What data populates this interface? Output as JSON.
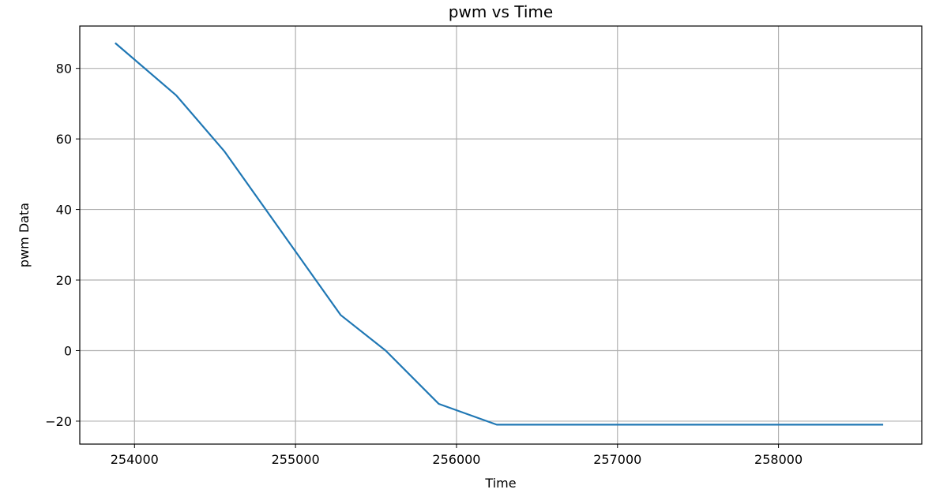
{
  "chart_data": {
    "type": "line",
    "title": "pwm vs Time",
    "xlabel": "Time",
    "ylabel": "pwm Data",
    "xlim": [
      253660,
      258890
    ],
    "ylim": [
      -26.5,
      92.0
    ],
    "xticks": [
      254000,
      255000,
      256000,
      257000,
      258000
    ],
    "yticks": [
      -20,
      0,
      20,
      40,
      60,
      80
    ],
    "xtick_labels": [
      "254000",
      "255000",
      "256000",
      "257000",
      "258000"
    ],
    "ytick_labels": [
      "−20",
      "0",
      "20",
      "40",
      "60",
      "80"
    ],
    "grid": true,
    "series": [
      {
        "color": "#1f77b4",
        "x": [
          253880,
          254260,
          254560,
          255280,
          255560,
          255890,
          256250,
          258650
        ],
        "y": [
          87.2,
          72.3,
          56.4,
          10.1,
          0.0,
          -15.1,
          -21.0,
          -21.0
        ]
      }
    ]
  }
}
